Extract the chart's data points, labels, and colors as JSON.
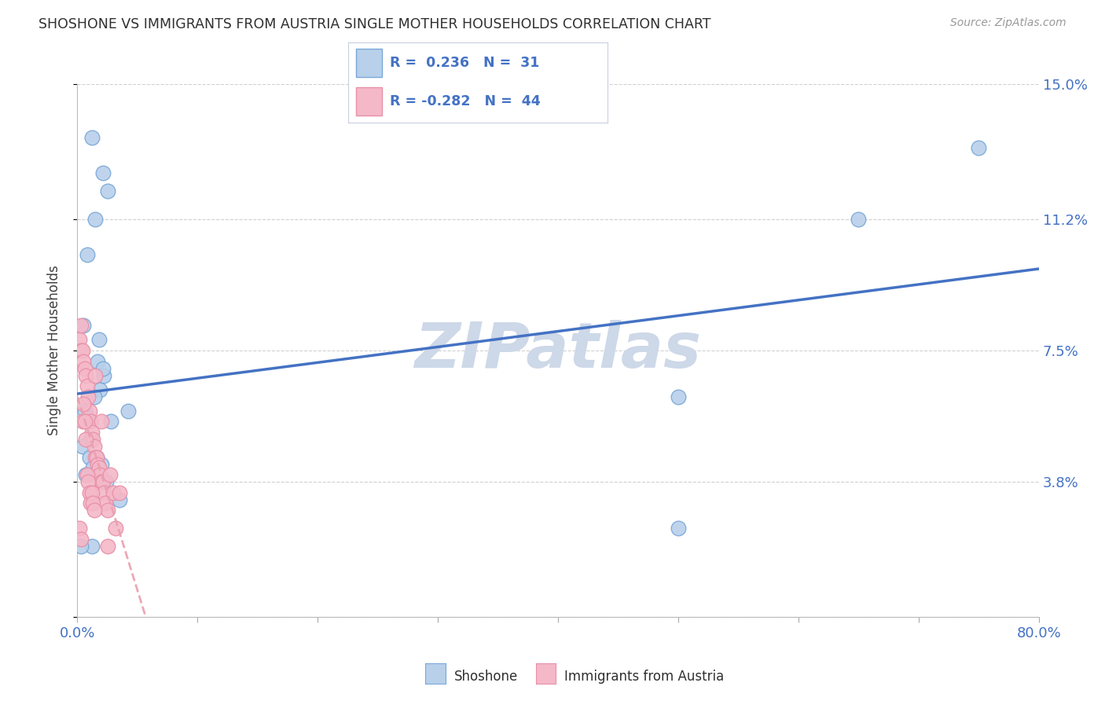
{
  "title": "SHOSHONE VS IMMIGRANTS FROM AUSTRIA SINGLE MOTHER HOUSEHOLDS CORRELATION CHART",
  "source": "Source: ZipAtlas.com",
  "ylabel": "Single Mother Households",
  "xlim": [
    0,
    80
  ],
  "ylim": [
    0,
    15
  ],
  "yticks": [
    0,
    3.8,
    7.5,
    11.2,
    15.0
  ],
  "xticks": [
    0,
    10,
    20,
    30,
    40,
    50,
    60,
    70,
    80
  ],
  "xtick_labels_show": {
    "0": "0.0%",
    "80": "80.0%"
  },
  "ytick_labels": [
    "",
    "3.8%",
    "7.5%",
    "11.2%",
    "15.0%"
  ],
  "watermark": "ZIPatlas",
  "shoshone_x": [
    1.2,
    2.1,
    2.5,
    1.5,
    0.8,
    0.5,
    1.8,
    2.2,
    1.9,
    1.4,
    0.6,
    0.9,
    2.8,
    4.2,
    1.1,
    0.4,
    1.0,
    1.6,
    2.0,
    1.3,
    0.7,
    2.4,
    3.5,
    50.0,
    65.0,
    75.0,
    50.0,
    1.2,
    0.3,
    1.7,
    2.1
  ],
  "shoshone_y": [
    13.5,
    12.5,
    12.0,
    11.2,
    10.2,
    8.2,
    7.8,
    6.8,
    6.4,
    6.2,
    5.8,
    5.6,
    5.5,
    5.8,
    5.0,
    4.8,
    4.5,
    4.5,
    4.3,
    4.2,
    4.0,
    3.8,
    3.3,
    6.2,
    11.2,
    13.2,
    2.5,
    2.0,
    2.0,
    7.2,
    7.0
  ],
  "austria_x": [
    0.2,
    0.3,
    0.4,
    0.5,
    0.6,
    0.7,
    0.8,
    0.9,
    1.0,
    1.1,
    1.2,
    1.3,
    1.4,
    1.5,
    1.6,
    1.7,
    1.8,
    1.9,
    2.0,
    2.1,
    2.2,
    2.3,
    2.5,
    2.7,
    3.0,
    3.2,
    0.3,
    0.4,
    0.5,
    0.6,
    0.7,
    0.8,
    0.9,
    1.0,
    1.1,
    1.2,
    1.3,
    1.4,
    0.2,
    0.3,
    1.5,
    2.0,
    2.5,
    3.5
  ],
  "austria_y": [
    7.8,
    7.5,
    7.5,
    7.2,
    7.0,
    6.8,
    6.5,
    6.2,
    5.8,
    5.5,
    5.2,
    5.0,
    4.8,
    4.5,
    4.5,
    4.3,
    4.2,
    4.0,
    3.8,
    3.8,
    3.5,
    3.2,
    3.0,
    4.0,
    3.5,
    2.5,
    8.2,
    5.5,
    6.0,
    5.5,
    5.0,
    4.0,
    3.8,
    3.5,
    3.2,
    3.5,
    3.2,
    3.0,
    2.5,
    2.2,
    6.8,
    5.5,
    2.0,
    3.5
  ],
  "blue_line_color": "#4472c4",
  "pink_line_color": "#e8a0b0",
  "dot_blue_face": "#b8d0ea",
  "dot_blue_edge": "#7aa8d8",
  "dot_pink_face": "#f4b8c8",
  "dot_pink_edge": "#e890a8",
  "title_color": "#303030",
  "axis_tick_color": "#4472c4",
  "grid_color": "#d0d0d0",
  "watermark_color": "#cdd8e8",
  "bg_color": "#ffffff",
  "legend_text_blue_color": "#4472c4",
  "legend_text_pink_color": "#4472c4",
  "R_sh": 0.236,
  "N_sh": 31,
  "R_au": -0.282,
  "N_au": 44
}
